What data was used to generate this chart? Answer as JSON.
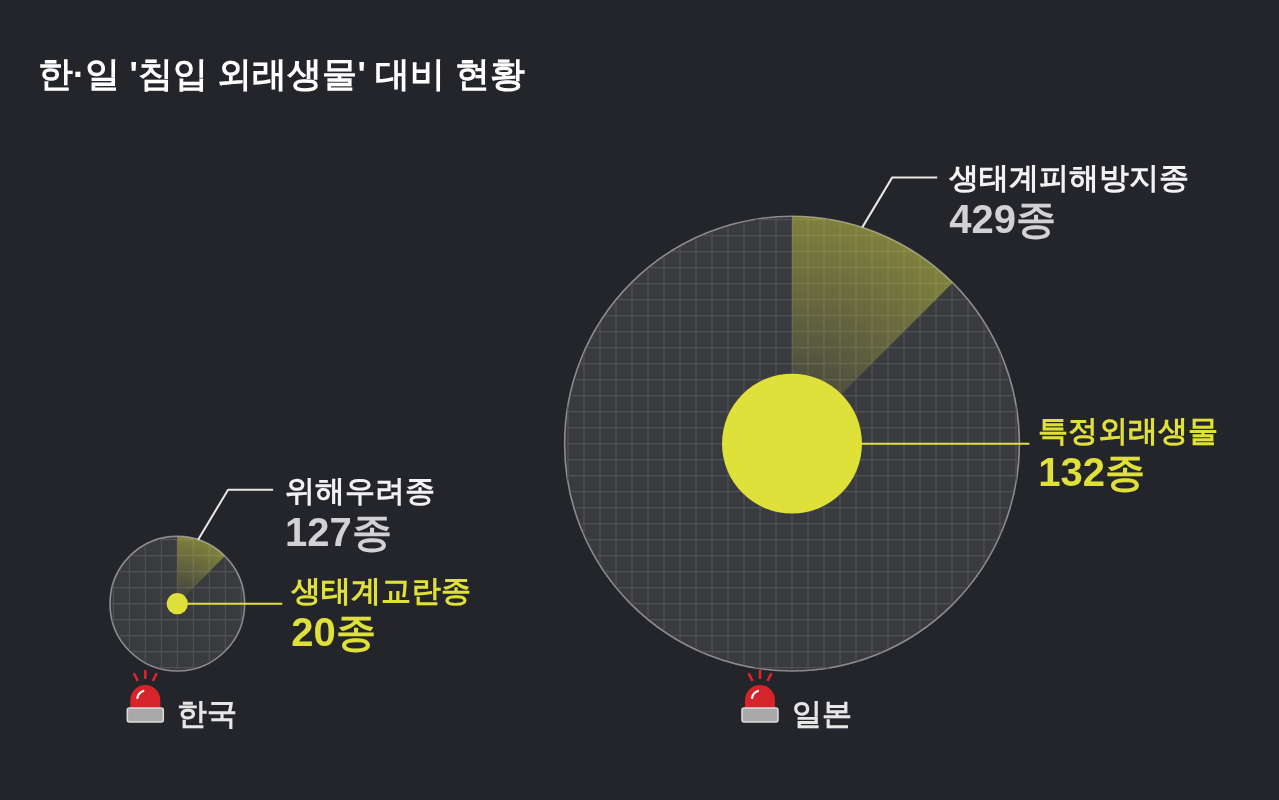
{
  "chart_data": [
    {
      "type": "other",
      "title": "한·일 '침입 외래생물' 대비 현황",
      "xlabel": "한국",
      "categories": [
        "위해우려종",
        "생태계교란종"
      ],
      "values": [
        127,
        20
      ],
      "colors": [
        "#3a3b3f",
        "#dfe03a"
      ],
      "value_labels": [
        "127종",
        "20종"
      ]
    },
    {
      "type": "other",
      "xlabel": "일본",
      "categories": [
        "생태계피해방지종",
        "특정외래생물"
      ],
      "values": [
        429,
        132
      ],
      "colors": [
        "#3a3b3f",
        "#dfe03a"
      ],
      "value_labels": [
        "429종",
        "132종"
      ]
    }
  ]
}
